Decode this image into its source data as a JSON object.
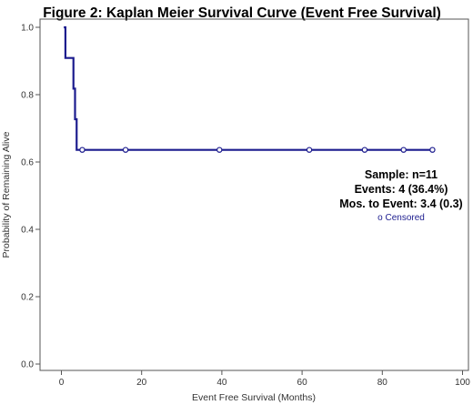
{
  "chart_data": {
    "type": "line",
    "title": "Figure 2: Kaplan Meier Survival Curve (Event Free Survival)",
    "xlabel": "Event Free Survival (Months)",
    "ylabel": "Probability of Remaining Alive",
    "xlim": [
      0,
      100
    ],
    "ylim": [
      0,
      1
    ],
    "xticks": [
      0,
      20,
      40,
      60,
      80,
      100
    ],
    "yticks": [
      0.0,
      0.2,
      0.4,
      0.6,
      0.8,
      1.0
    ],
    "xtick_labels": [
      "0",
      "20",
      "40",
      "60",
      "80",
      "100"
    ],
    "ytick_labels": [
      "0.0",
      "0.2",
      "0.4",
      "0.6",
      "0.8",
      "1.0"
    ],
    "grid": false,
    "series": [
      {
        "color": "#1c1c8e",
        "step": [
          {
            "x": 0.6,
            "y": 1.0
          },
          {
            "x": 1.0,
            "y": 0.909
          },
          {
            "x": 3.0,
            "y": 0.818
          },
          {
            "x": 3.4,
            "y": 0.727
          },
          {
            "x": 3.8,
            "y": 0.636
          }
        ],
        "x_end": 92.5,
        "censored": [
          {
            "x": 5.2,
            "y": 0.636
          },
          {
            "x": 16.0,
            "y": 0.636
          },
          {
            "x": 39.4,
            "y": 0.636
          },
          {
            "x": 61.8,
            "y": 0.636
          },
          {
            "x": 75.6,
            "y": 0.636
          },
          {
            "x": 85.3,
            "y": 0.636
          },
          {
            "x": 92.5,
            "y": 0.636
          }
        ]
      }
    ],
    "annotations": [
      "Sample: n=11",
      "Events: 4 (36.4%)",
      "Mos. to Event: 3.4 (0.3)"
    ],
    "legend": {
      "label": "o Censored",
      "color": "#1c1c8e",
      "placement": "right"
    }
  }
}
